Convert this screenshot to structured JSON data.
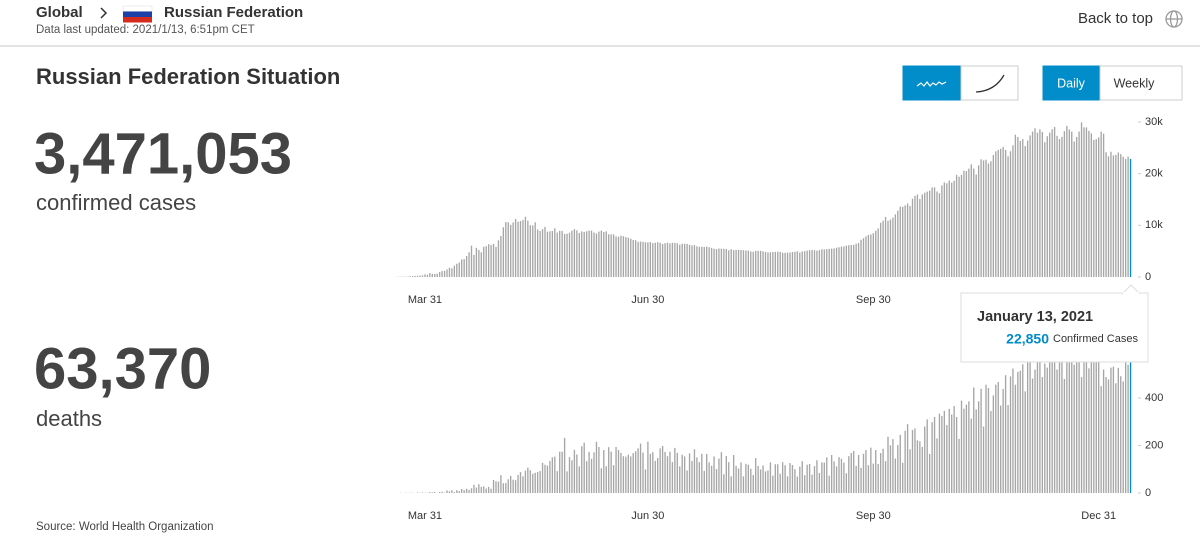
{
  "header": {
    "breadcrumb_root": "Global",
    "country": "Russian Federation",
    "updated": "Data last updated: 2021/1/13, 6:51pm CET",
    "back_to_top": "Back to top"
  },
  "summary": {
    "title": "Russian Federation Situation",
    "cases": "3,471,053",
    "cases_label": "confirmed cases",
    "deaths": "63,370",
    "deaths_label": "deaths"
  },
  "controls": {
    "daily": "Daily",
    "weekly": "Weekly"
  },
  "tooltip": {
    "date": "January 13, 2021",
    "value": "22,850",
    "label": "Confirmed Cases"
  },
  "source": "Source: World Health Organization",
  "chart_data": [
    {
      "type": "bar",
      "color": "#a6a6a6",
      "highlight_color": "#008dc9",
      "ylim": [
        0,
        30000
      ],
      "yticks": [
        0,
        {
          "value": 10000,
          "label": "10k"
        },
        {
          "value": 20000,
          "label": "20k"
        },
        {
          "value": 30000,
          "label": "30k"
        }
      ],
      "categories": [
        null,
        null,
        null,
        null,
        null,
        null,
        null,
        null,
        null,
        null,
        null,
        "Mar 31",
        null,
        null,
        null,
        null,
        null,
        null,
        null,
        null,
        null,
        null,
        null,
        null,
        null,
        null,
        null,
        null,
        null,
        null,
        null,
        null,
        null,
        null,
        null,
        null,
        null,
        null,
        null,
        null,
        null,
        null,
        null,
        null,
        null,
        null,
        null,
        null,
        null,
        null,
        null,
        null,
        null,
        null,
        null,
        null,
        null,
        null,
        null,
        null,
        null,
        null,
        null,
        null,
        null,
        null,
        null,
        null,
        null,
        null,
        null,
        null,
        null,
        null,
        null,
        null,
        null,
        null,
        null,
        null,
        null,
        null,
        null,
        null,
        null,
        null,
        null,
        null,
        null,
        null,
        null,
        null,
        null,
        null,
        null,
        null,
        null,
        null,
        null,
        null,
        null,
        null,
        "Jun 30",
        null,
        null,
        null,
        null,
        null,
        null,
        null,
        null,
        null,
        null,
        null,
        null,
        null,
        null,
        null,
        null,
        null,
        null,
        null,
        null,
        null,
        null,
        null,
        null,
        null,
        null,
        null,
        null,
        null,
        null,
        null,
        null,
        null,
        null,
        null,
        null,
        null,
        null,
        null,
        null,
        null,
        null,
        null,
        null,
        null,
        null,
        null,
        null,
        null,
        null,
        null,
        null,
        null,
        null,
        null,
        null,
        null,
        null,
        null,
        null,
        null,
        null,
        null,
        null,
        null,
        null,
        null,
        null,
        null,
        null,
        null,
        null,
        null,
        null,
        null,
        null,
        null,
        null,
        null,
        null,
        null,
        null,
        null,
        null,
        null,
        null,
        null,
        null,
        null,
        null,
        null,
        "Sep 30",
        null,
        null,
        null,
        null,
        null,
        null,
        null,
        null,
        null,
        null,
        null,
        null,
        null,
        null,
        null,
        null,
        null,
        null,
        null,
        null,
        null,
        null,
        null,
        null,
        null,
        null,
        null,
        null,
        null,
        null,
        null,
        null,
        null,
        null,
        null,
        null,
        null,
        null,
        null,
        null,
        null,
        null,
        null,
        null,
        null,
        null,
        null,
        null,
        null,
        null,
        null,
        null,
        null,
        null,
        null,
        null,
        null,
        null,
        null,
        null,
        null,
        null,
        null,
        null,
        null,
        null,
        null,
        null,
        null,
        null,
        null,
        null,
        null,
        null,
        null,
        null,
        null,
        null,
        null,
        null,
        null,
        null,
        null,
        null,
        null,
        null,
        null,
        null,
        null,
        null,
        null,
        null,
        null,
        null,
        null,
        null,
        null,
        null,
        null,
        null,
        null,
        null,
        null,
        null,
        null
      ],
      "values": [
        53,
        54,
        71,
        57,
        71,
        163,
        182,
        196,
        228,
        270,
        302,
        500,
        440,
        771,
        601,
        582,
        658,
        954,
        1154,
        1175,
        1459,
        1786,
        1667,
        2186,
        2558,
        2774,
        3388,
        3448,
        4070,
        4785,
        6060,
        4268,
        5642,
        5236,
        4774,
        5849,
        5966,
        6361,
        6198,
        6411,
        5841,
        7099,
        7933,
        9623,
        10633,
        10581,
        10102,
        10559,
        11231,
        10699,
        10817,
        11012,
        11656,
        10899,
        10028,
        9974,
        10598,
        9200,
        8926,
        9263,
        9709,
        8764,
        8849,
        8894,
        9434,
        8599,
        8946,
        8915,
        8338,
        8371,
        8572,
        8952,
        9268,
        9035,
        8536,
        8831,
        8726,
        8855,
        8984,
        8985,
        8595,
        8404,
        8779,
        8987,
        8706,
        8835,
        8248,
        8246,
        8238,
        7843,
        7790,
        7972,
        7889,
        7728,
        7600,
        7425,
        7176,
        7113,
        6800,
        6852,
        6791,
        6719,
        6693,
        6760,
        6556,
        6632,
        6736,
        6611,
        6368,
        6562,
        6635,
        6509,
        6615,
        6611,
        6537,
        6248,
        6422,
        6428,
        6406,
        6234,
        6109,
        6170,
        5940,
        5842,
        5862,
        5811,
        5871,
        5765,
        5635,
        5475,
        5395,
        5509,
        5482,
        5462,
        5427,
        5159,
        5394,
        5204,
        5241,
        5267,
        5212,
        5189,
        5118,
        5102,
        4945,
        4892,
        5065,
        5061,
        5057,
        4969,
        4839,
        4748,
        4790,
        4828,
        4870,
        4921,
        4852,
        4696,
        4676,
        4711,
        4741,
        4829,
        4880,
        4980,
        4729,
        4952,
        4993,
        5110,
        5185,
        5205,
        5195,
        5099,
        5185,
        5363,
        5310,
        5406,
        5449,
        5509,
        5529,
        5670,
        5762,
        5905,
        5904,
        6065,
        6148,
        6196,
        6215,
        6431,
        6595,
        7212,
        7523,
        7867,
        8135,
        8232,
        8481,
        8945,
        9412,
        10499,
        10888,
        11615,
        10888,
        11115,
        11493,
        12126,
        12846,
        13634,
        13592,
        13868,
        14231,
        13754,
        15150,
        15700,
        15982,
        15099,
        15982,
        16319,
        16521,
        16710,
        17340,
        17347,
        16550,
        16202,
        17717,
        18283,
        18140,
        18665,
        18257,
        18648,
        19768,
        19404,
        19768,
        20582,
        20498,
        20977,
        21798,
        20977,
        19851,
        21608,
        22778,
        22572,
        22702,
        21983,
        22410,
        23610,
        24318,
        24581,
        24822,
        25173,
        24581,
        23351,
        24326,
        25487,
        27543,
        27100,
        26338,
        26683,
        25345,
        26402,
        27403,
        28145,
        28782,
        27927,
        28585,
        28071,
        26097,
        27250,
        27927,
        28585,
        29039,
        27328,
        26689,
        27120,
        28214,
        29258,
        28552,
        28137,
        26223,
        27089,
        28137,
        29935,
        28968,
        28948,
        28284,
        27787,
        26513,
        26689,
        27039,
        28137,
        27747,
        24150,
        23351,
        24246,
        23541,
        23652,
        24092,
        23771,
        23283,
        22851,
        23315,
        22850
      ]
    },
    {
      "type": "bar",
      "color": "#a6a6a6",
      "highlight_color": "#008dc9",
      "ylim": [
        0,
        600
      ],
      "yticks": [
        0,
        200,
        400
      ],
      "categories": [
        null,
        null,
        null,
        null,
        null,
        null,
        null,
        null,
        null,
        null,
        null,
        "Mar 31",
        null,
        null,
        null,
        null,
        null,
        null,
        null,
        null,
        null,
        null,
        null,
        null,
        null,
        null,
        null,
        null,
        null,
        null,
        null,
        null,
        null,
        null,
        null,
        null,
        null,
        null,
        null,
        null,
        null,
        null,
        null,
        null,
        null,
        null,
        null,
        null,
        null,
        null,
        null,
        null,
        null,
        null,
        null,
        null,
        null,
        null,
        null,
        null,
        null,
        null,
        null,
        null,
        null,
        null,
        null,
        null,
        null,
        null,
        null,
        null,
        null,
        null,
        null,
        null,
        null,
        null,
        null,
        null,
        null,
        null,
        null,
        null,
        null,
        null,
        null,
        null,
        null,
        null,
        null,
        null,
        null,
        null,
        null,
        null,
        null,
        null,
        null,
        null,
        null,
        null,
        "Jun 30",
        null,
        null,
        null,
        null,
        null,
        null,
        null,
        null,
        null,
        null,
        null,
        null,
        null,
        null,
        null,
        null,
        null,
        null,
        null,
        null,
        null,
        null,
        null,
        null,
        null,
        null,
        null,
        null,
        null,
        null,
        null,
        null,
        null,
        null,
        null,
        null,
        null,
        null,
        null,
        null,
        null,
        null,
        null,
        null,
        null,
        null,
        null,
        null,
        null,
        null,
        null,
        null,
        null,
        null,
        null,
        null,
        null,
        null,
        null,
        null,
        null,
        null,
        null,
        null,
        null,
        null,
        null,
        null,
        null,
        null,
        null,
        null,
        null,
        null,
        null,
        null,
        null,
        null,
        null,
        null,
        null,
        null,
        null,
        null,
        null,
        null,
        null,
        null,
        null,
        null,
        null,
        "Sep 30",
        null,
        null,
        null,
        null,
        null,
        null,
        null,
        null,
        null,
        null,
        null,
        null,
        null,
        null,
        null,
        null,
        null,
        null,
        null,
        null,
        null,
        null,
        null,
        null,
        null,
        null,
        null,
        null,
        null,
        null,
        null,
        null,
        null,
        null,
        null,
        null,
        null,
        null,
        null,
        null,
        null,
        null,
        null,
        null,
        null,
        null,
        null,
        null,
        null,
        null,
        null,
        null,
        null,
        null,
        null,
        null,
        null,
        null,
        null,
        null,
        null,
        null,
        null,
        null,
        null,
        null,
        null,
        null,
        null,
        null,
        null,
        null,
        null,
        null,
        null,
        null,
        null,
        null,
        null,
        null,
        null,
        null,
        null,
        null,
        null,
        null,
        null,
        null,
        null,
        null,
        null,
        "Dec 31",
        null,
        null,
        null,
        null,
        null,
        null,
        null,
        null,
        null,
        null,
        null,
        null,
        null
      ],
      "values": [
        0,
        1,
        0,
        1,
        1,
        1,
        1,
        0,
        2,
        1,
        2,
        1,
        1,
        4,
        3,
        4,
        0,
        4,
        5,
        2,
        11,
        7,
        12,
        4,
        12,
        8,
        17,
        12,
        18,
        13,
        20,
        35,
        23,
        37,
        26,
        28,
        19,
        26,
        18,
        55,
        49,
        48,
        75,
        41,
        42,
        58,
        72,
        56,
        54,
        76,
        88,
        70,
        94,
        107,
        96,
        81,
        85,
        88,
        93,
        127,
        119,
        115,
        135,
        150,
        153,
        92,
        174,
        174,
        232,
        91,
        151,
        138,
        182,
        162,
        112,
        197,
        212,
        134,
        173,
        144,
        171,
        216,
        194,
        104,
        181,
        113,
        193,
        174,
        117,
        194,
        181,
        169,
        155,
        153,
        161,
        154,
        168,
        176,
        188,
        208,
        170,
        99,
        216,
        165,
        172,
        135,
        147,
        188,
        198,
        173,
        155,
        174,
        130,
        190,
        169,
        112,
        161,
        154,
        95,
        167,
        135,
        184,
        150,
        130,
        165,
        93,
        164,
        129,
        115,
        154,
        101,
        145,
        172,
        79,
        156,
        130,
        70,
        160,
        114,
        103,
        129,
        70,
        123,
        119,
        102,
        76,
        147,
        114,
        99,
        116,
        91,
        95,
        129,
        73,
        121,
        121,
        81,
        130,
        117,
        70,
        126,
        118,
        100,
        69,
        111,
        134,
        75,
        119,
        122,
        77,
        113,
        138,
        84,
        129,
        128,
        150,
        73,
        160,
        133,
        112,
        151,
        144,
        128,
        83,
        155,
        169,
        177,
        114,
        160,
        106,
        165,
        181,
        117,
        191,
        124,
        181,
        122,
        168,
        186,
        134,
        237,
        201,
        227,
        145,
        202,
        245,
        127,
        262,
        290,
        184,
        265,
        272,
        222,
        218,
        194,
        280,
        310,
        164,
        298,
        320,
        230,
        334,
        324,
        346,
        286,
        354,
        330,
        366,
        320,
        228,
        389,
        355,
        372,
        386,
        313,
        444,
        352,
        386,
        439,
        280,
        456,
        442,
        345,
        411,
        456,
        467,
        368,
        438,
        496,
        370,
        491,
        524,
        456,
        510,
        515,
        542,
        428,
        573,
        560,
        482,
        520,
        578,
        590,
        488,
        545,
        528,
        562,
        600,
        611,
        520,
        585,
        600,
        480,
        580,
        568,
        635,
        540,
        586,
        590,
        488,
        585,
        599,
        525,
        555,
        560,
        602,
        560,
        450,
        520,
        488,
        478,
        528,
        532,
        462,
        527,
        492,
        470,
        565,
        540,
        575
      ]
    }
  ]
}
